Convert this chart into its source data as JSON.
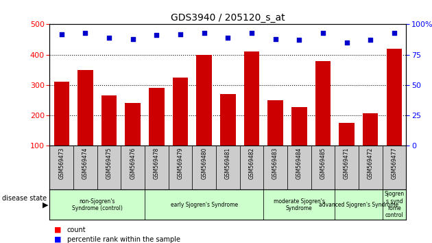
{
  "title": "GDS3940 / 205120_s_at",
  "samples": [
    "GSM569473",
    "GSM569474",
    "GSM569475",
    "GSM569476",
    "GSM569478",
    "GSM569479",
    "GSM569480",
    "GSM569481",
    "GSM569482",
    "GSM569483",
    "GSM569484",
    "GSM569485",
    "GSM569471",
    "GSM569472",
    "GSM569477"
  ],
  "counts": [
    310,
    350,
    265,
    240,
    290,
    325,
    400,
    270,
    410,
    250,
    228,
    378,
    175,
    207,
    420
  ],
  "percentiles": [
    92,
    93,
    89,
    88,
    91,
    92,
    93,
    89,
    93,
    88,
    87,
    93,
    85,
    87,
    93
  ],
  "bar_color": "#cc0000",
  "dot_color": "#0000cc",
  "ylim_left": [
    100,
    500
  ],
  "ylim_right": [
    0,
    100
  ],
  "yticks_left": [
    100,
    200,
    300,
    400,
    500
  ],
  "yticks_right": [
    0,
    25,
    50,
    75,
    100
  ],
  "groups": [
    {
      "label": "non-Sjogren's\nSyndrome (control)",
      "start": 0,
      "end": 3,
      "color": "#ccffcc"
    },
    {
      "label": "early Sjogren's Syndrome",
      "start": 4,
      "end": 8,
      "color": "#ccffcc"
    },
    {
      "label": "moderate Sjogren's\nSyndrome",
      "start": 9,
      "end": 11,
      "color": "#ccffcc"
    },
    {
      "label": "advanced Sjogren's Syndrome",
      "start": 12,
      "end": 13,
      "color": "#ccffcc"
    },
    {
      "label": "Sjogren\ns synd\nrome\ncontrol",
      "start": 14,
      "end": 14,
      "color": "#ccffcc"
    }
  ],
  "disease_state_label": "disease state",
  "legend_count_label": "count",
  "legend_percentile_label": "percentile rank within the sample",
  "tick_area_color": "#cccccc",
  "group_gap_color": "#ffffff"
}
